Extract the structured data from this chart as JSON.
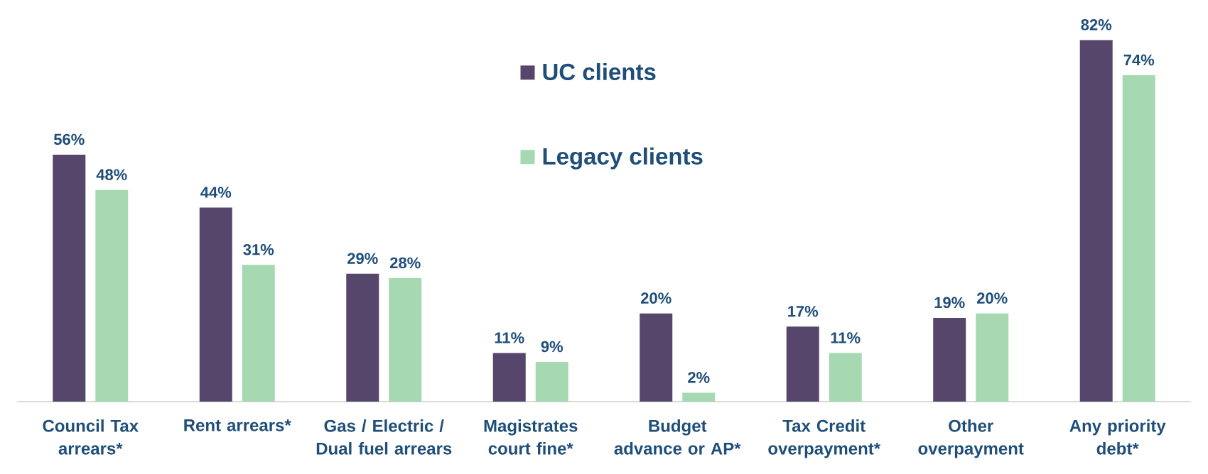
{
  "chart_data": {
    "type": "bar",
    "categories": [
      "Council Tax arrears*",
      "Rent arrears*",
      "Gas / Electric / Dual fuel arrears",
      "Magistrates court fine*",
      "Budget advance or AP*",
      "Tax Credit overpayment*",
      "Other overpayment",
      "Any priority debt*"
    ],
    "series": [
      {
        "name": "UC clients",
        "color": "#56466b",
        "values": [
          56,
          44,
          29,
          11,
          20,
          17,
          19,
          82
        ],
        "value_labels": [
          "56%",
          "44%",
          "29%",
          "11%",
          "20%",
          "17%",
          "19%",
          "82%"
        ]
      },
      {
        "name": "Legacy clients",
        "color": "#a6d8b1",
        "values": [
          48,
          31,
          28,
          9,
          2,
          11,
          20,
          74
        ],
        "value_labels": [
          "48%",
          "31%",
          "28%",
          "9%",
          "2%",
          "11%",
          "20%",
          "74%"
        ]
      }
    ],
    "legend": "top",
    "tick_labels": "x"
  }
}
